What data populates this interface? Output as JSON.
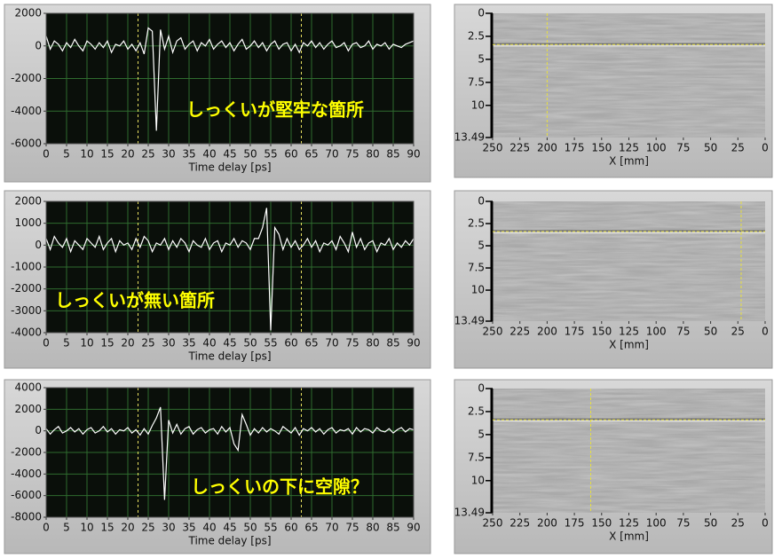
{
  "chart_data": [
    {
      "type": "line",
      "xlabel": "Time delay [ps]",
      "annotation": "しっくいが堅牢な箇所",
      "color": "#ffffff",
      "grid": true,
      "xlim": [
        0,
        90
      ],
      "xticks": [
        0,
        5,
        10,
        15,
        20,
        25,
        30,
        35,
        40,
        45,
        50,
        55,
        60,
        65,
        70,
        75,
        80,
        85,
        90
      ],
      "ylim": [
        -6000,
        2000
      ],
      "yticks": [
        2000,
        0,
        -2000,
        -4000,
        -6000
      ],
      "cursors_x": [
        22.5,
        62.5
      ],
      "x": [
        0,
        1,
        2,
        3,
        4,
        5,
        6,
        7,
        8,
        9,
        10,
        11,
        12,
        13,
        14,
        15,
        16,
        17,
        18,
        19,
        20,
        21,
        22,
        23,
        24,
        25,
        26,
        27,
        28,
        29,
        30,
        31,
        32,
        33,
        34,
        35,
        36,
        37,
        38,
        39,
        40,
        41,
        42,
        43,
        44,
        45,
        46,
        47,
        48,
        49,
        50,
        51,
        52,
        53,
        54,
        55,
        56,
        57,
        58,
        59,
        60,
        61,
        62,
        63,
        64,
        65,
        66,
        67,
        68,
        69,
        70,
        71,
        72,
        73,
        74,
        75,
        76,
        77,
        78,
        79,
        80,
        81,
        82,
        83,
        84,
        85,
        86,
        87,
        88,
        89,
        90
      ],
      "values": [
        600,
        -200,
        300,
        100,
        -300,
        200,
        -100,
        400,
        0,
        -300,
        300,
        100,
        -200,
        200,
        -100,
        300,
        -400,
        100,
        0,
        300,
        -200,
        100,
        -300,
        200,
        -500,
        1100,
        900,
        -5200,
        1000,
        -200,
        600,
        -400,
        300,
        500,
        -200,
        100,
        300,
        -300,
        200,
        0,
        400,
        -200,
        100,
        300,
        -100,
        200,
        -300,
        100,
        400,
        -200,
        0,
        300,
        -100,
        200,
        -300,
        100,
        300,
        -200,
        100,
        200,
        -300,
        100,
        -400,
        200,
        0,
        300,
        -100,
        200,
        -200,
        100,
        300,
        -100,
        0,
        200,
        -300,
        100,
        200,
        -100,
        0,
        300,
        -200,
        100,
        0,
        200,
        -200,
        100,
        0,
        -100,
        100,
        200,
        300
      ]
    },
    {
      "type": "line",
      "xlabel": "Time delay [ps]",
      "annotation": "しっくいが無い箇所",
      "color": "#ffffff",
      "grid": true,
      "xlim": [
        0,
        90
      ],
      "xticks": [
        0,
        5,
        10,
        15,
        20,
        25,
        30,
        35,
        40,
        45,
        50,
        55,
        60,
        65,
        70,
        75,
        80,
        85,
        90
      ],
      "ylim": [
        -4000,
        2000
      ],
      "yticks": [
        2000,
        1000,
        0,
        -1000,
        -2000,
        -3000,
        -4000
      ],
      "cursors_x": [
        22.5,
        62.5
      ],
      "x": [
        0,
        1,
        2,
        3,
        4,
        5,
        6,
        7,
        8,
        9,
        10,
        11,
        12,
        13,
        14,
        15,
        16,
        17,
        18,
        19,
        20,
        21,
        22,
        23,
        24,
        25,
        26,
        27,
        28,
        29,
        30,
        31,
        32,
        33,
        34,
        35,
        36,
        37,
        38,
        39,
        40,
        41,
        42,
        43,
        44,
        45,
        46,
        47,
        48,
        49,
        50,
        51,
        52,
        53,
        54,
        55,
        56,
        57,
        58,
        59,
        60,
        61,
        62,
        63,
        64,
        65,
        66,
        67,
        68,
        69,
        70,
        71,
        72,
        73,
        74,
        75,
        76,
        77,
        78,
        79,
        80,
        81,
        82,
        83,
        84,
        85,
        86,
        87,
        88,
        89,
        90
      ],
      "values": [
        300,
        -200,
        400,
        100,
        -100,
        300,
        -300,
        200,
        0,
        -200,
        300,
        100,
        -100,
        400,
        -200,
        100,
        300,
        -300,
        200,
        0,
        100,
        -200,
        300,
        -100,
        400,
        200,
        -300,
        100,
        0,
        300,
        -200,
        200,
        -100,
        300,
        100,
        -300,
        200,
        0,
        -100,
        300,
        -200,
        100,
        200,
        -300,
        100,
        0,
        300,
        -100,
        200,
        100,
        -200,
        300,
        300,
        800,
        1700,
        -3900,
        800,
        500,
        -200,
        300,
        -100,
        200,
        -200,
        0,
        300,
        -100,
        200,
        -300,
        100,
        0,
        200,
        -200,
        400,
        100,
        -300,
        600,
        -100,
        300,
        -200,
        100,
        200,
        -300,
        100,
        0,
        300,
        -200,
        100,
        -100,
        200,
        0,
        300
      ]
    },
    {
      "type": "line",
      "xlabel": "Time delay [ps]",
      "annotation": "しっくいの下に空隙？",
      "color": "#ffffff",
      "grid": true,
      "xlim": [
        0,
        90
      ],
      "xticks": [
        0,
        5,
        10,
        15,
        20,
        25,
        30,
        35,
        40,
        45,
        50,
        55,
        60,
        65,
        70,
        75,
        80,
        85,
        90
      ],
      "ylim": [
        -8000,
        4000
      ],
      "yticks": [
        4000,
        2000,
        0,
        -2000,
        -4000,
        -6000,
        -8000
      ],
      "cursors_x": [
        22.5,
        62.5
      ],
      "x": [
        0,
        1,
        2,
        3,
        4,
        5,
        6,
        7,
        8,
        9,
        10,
        11,
        12,
        13,
        14,
        15,
        16,
        17,
        18,
        19,
        20,
        21,
        22,
        23,
        24,
        25,
        26,
        27,
        28,
        29,
        30,
        31,
        32,
        33,
        34,
        35,
        36,
        37,
        38,
        39,
        40,
        41,
        42,
        43,
        44,
        45,
        46,
        47,
        48,
        49,
        50,
        51,
        52,
        53,
        54,
        55,
        56,
        57,
        58,
        59,
        60,
        61,
        62,
        63,
        64,
        65,
        66,
        67,
        68,
        69,
        70,
        71,
        72,
        73,
        74,
        75,
        76,
        77,
        78,
        79,
        80,
        81,
        82,
        83,
        84,
        85,
        86,
        87,
        88,
        89,
        90
      ],
      "values": [
        200,
        -300,
        100,
        400,
        -200,
        0,
        300,
        -100,
        200,
        -300,
        100,
        300,
        -200,
        0,
        400,
        -100,
        200,
        -300,
        100,
        0,
        300,
        -200,
        100,
        -400,
        200,
        -300,
        500,
        1200,
        2200,
        -6400,
        1000,
        -200,
        600,
        -300,
        200,
        400,
        -300,
        100,
        300,
        -200,
        100,
        200,
        -300,
        400,
        -100,
        300,
        -1200,
        -1800,
        1500,
        600,
        -400,
        200,
        -200,
        300,
        -100,
        200,
        0,
        -300,
        400,
        100,
        -200,
        300,
        -400,
        200,
        0,
        300,
        -100,
        200,
        -300,
        100,
        300,
        -200,
        100,
        0,
        200,
        -300,
        300,
        -100,
        200,
        100,
        -200,
        300,
        0,
        -100,
        200,
        -200,
        100,
        300,
        -100,
        200,
        100
      ]
    },
    {
      "type": "image",
      "xlabel": "X [mm]",
      "xlim": [
        250,
        0
      ],
      "xticks": [
        250,
        225,
        200,
        175,
        150,
        125,
        100,
        75,
        50,
        25,
        0
      ],
      "ylim": [
        0,
        13.49
      ],
      "yticks": [
        0,
        2.5,
        5,
        7.5,
        10,
        13.49
      ],
      "cursor": {
        "x": 200,
        "y": 3.4
      }
    },
    {
      "type": "image",
      "xlabel": "X [mm]",
      "xlim": [
        250,
        0
      ],
      "xticks": [
        250,
        225,
        200,
        175,
        150,
        125,
        100,
        75,
        50,
        25,
        0
      ],
      "ylim": [
        0,
        13.49
      ],
      "yticks": [
        0,
        2.5,
        5,
        7.5,
        10,
        13.49
      ],
      "cursor": {
        "x": 22,
        "y": 3.4
      }
    },
    {
      "type": "image",
      "xlabel": "X [mm]",
      "xlim": [
        250,
        0
      ],
      "xticks": [
        250,
        225,
        200,
        175,
        150,
        125,
        100,
        75,
        50,
        25,
        0
      ],
      "ylim": [
        0,
        13.49
      ],
      "yticks": [
        0,
        2.5,
        5,
        7.5,
        10,
        13.49
      ],
      "cursor": {
        "x": 160,
        "y": 3.4
      }
    }
  ]
}
